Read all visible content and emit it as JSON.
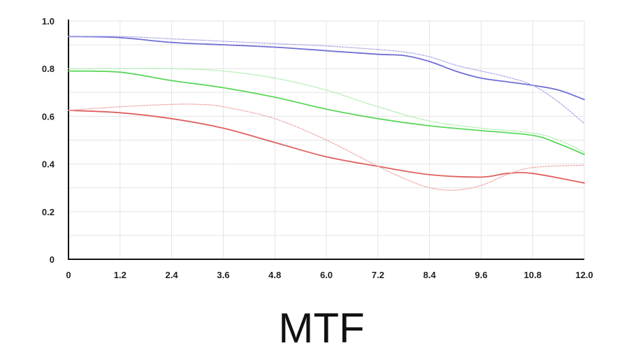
{
  "caption": "MTF",
  "chart_data": {
    "type": "line",
    "title": "",
    "xlabel": "",
    "ylabel": "",
    "xlim": [
      0,
      12
    ],
    "ylim": [
      0,
      1.0
    ],
    "grid": true,
    "x_ticks": [
      "0",
      "1.2",
      "2.4",
      "3.6",
      "4.8",
      "6.0",
      "7.2",
      "8.4",
      "9.6",
      "10.8",
      "12.0"
    ],
    "y_ticks": [
      "0",
      "0.2",
      "0.4",
      "0.6",
      "0.8",
      "1.0"
    ],
    "x_tick_values": [
      0,
      1.2,
      2.4,
      3.6,
      4.8,
      6.0,
      7.2,
      8.4,
      9.6,
      10.8,
      12.0
    ],
    "y_tick_values": [
      0,
      0.2,
      0.4,
      0.6,
      0.8,
      1.0
    ],
    "series": [
      {
        "color": "#6f6fd6",
        "style": "solid",
        "x": [
          0,
          1.2,
          2.4,
          3.6,
          4.8,
          6.0,
          7.2,
          7.8,
          8.4,
          9.0,
          9.6,
          10.2,
          10.8,
          11.4,
          12.0
        ],
        "y": [
          0.935,
          0.93,
          0.91,
          0.9,
          0.89,
          0.875,
          0.86,
          0.855,
          0.83,
          0.79,
          0.76,
          0.745,
          0.73,
          0.71,
          0.67
        ]
      },
      {
        "color": "#a9a9e6",
        "style": "dotted",
        "x": [
          0,
          1.2,
          2.4,
          3.6,
          4.8,
          6.0,
          7.2,
          7.8,
          8.4,
          9.0,
          9.6,
          10.2,
          10.8,
          11.4,
          12.0
        ],
        "y": [
          0.935,
          0.935,
          0.925,
          0.915,
          0.905,
          0.895,
          0.88,
          0.87,
          0.85,
          0.815,
          0.79,
          0.765,
          0.73,
          0.66,
          0.57
        ]
      },
      {
        "color": "#5bd85b",
        "style": "solid",
        "x": [
          0,
          1.2,
          2.4,
          3.6,
          4.8,
          6.0,
          7.2,
          8.4,
          9.6,
          10.8,
          11.4,
          12.0
        ],
        "y": [
          0.79,
          0.785,
          0.75,
          0.72,
          0.68,
          0.63,
          0.59,
          0.56,
          0.54,
          0.52,
          0.485,
          0.44
        ]
      },
      {
        "color": "#a8eca8",
        "style": "dotted",
        "x": [
          0,
          1.2,
          2.4,
          3.6,
          4.8,
          6.0,
          7.2,
          8.4,
          9.6,
          10.8,
          11.4,
          12.0
        ],
        "y": [
          0.8,
          0.8,
          0.8,
          0.79,
          0.76,
          0.71,
          0.64,
          0.58,
          0.55,
          0.53,
          0.5,
          0.45
        ]
      },
      {
        "color": "#e06060",
        "style": "solid",
        "x": [
          0,
          1.2,
          2.4,
          3.6,
          4.8,
          6.0,
          7.2,
          8.4,
          9.6,
          10.2,
          10.8,
          12.0
        ],
        "y": [
          0.625,
          0.615,
          0.59,
          0.55,
          0.49,
          0.43,
          0.39,
          0.355,
          0.345,
          0.36,
          0.36,
          0.32
        ]
      },
      {
        "color": "#f0a8a8",
        "style": "dotted",
        "x": [
          0,
          1.2,
          2.4,
          3.0,
          3.6,
          4.8,
          6.0,
          7.2,
          7.8,
          8.4,
          9.0,
          9.6,
          10.2,
          10.8,
          12.0
        ],
        "y": [
          0.625,
          0.64,
          0.65,
          0.65,
          0.64,
          0.59,
          0.5,
          0.39,
          0.34,
          0.3,
          0.29,
          0.31,
          0.355,
          0.385,
          0.395
        ]
      }
    ]
  }
}
